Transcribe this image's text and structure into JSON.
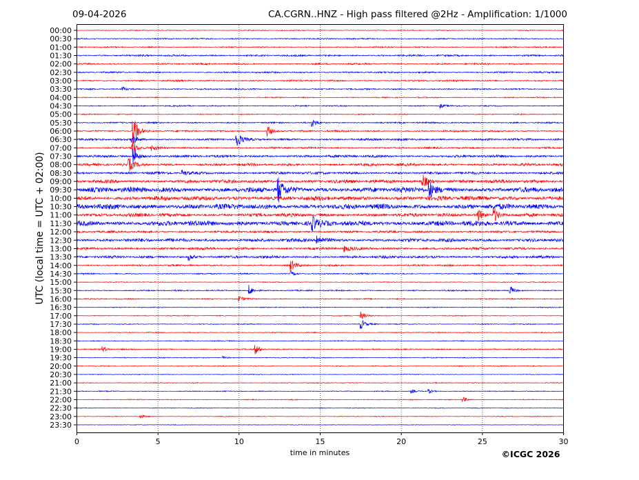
{
  "header": {
    "date": "09-04-2026",
    "title": "CA.CGRN..HNZ - High pass filtered @2Hz - Amplification: 1/1000"
  },
  "footer": {
    "copyright": "©ICGC 2026"
  },
  "chart_data": {
    "type": "line",
    "subtype": "helicorder",
    "title": "CA.CGRN..HNZ - High pass filtered @2Hz - Amplification: 1/1000",
    "xlabel": "time in minutes",
    "ylabel": "UTC (local time = UTC + 02:00)",
    "xlim": [
      0,
      30
    ],
    "xticks": [
      0,
      5,
      10,
      15,
      20,
      25,
      30
    ],
    "grid": "vertical dotted at x ticks",
    "colors": {
      "even_row": "#ff0000",
      "odd_row": "#0000ff"
    },
    "rows": [
      "00:00",
      "00:30",
      "01:00",
      "01:30",
      "02:00",
      "02:30",
      "03:00",
      "03:30",
      "04:00",
      "04:30",
      "05:00",
      "05:30",
      "06:00",
      "06:30",
      "07:00",
      "07:30",
      "08:00",
      "08:30",
      "09:00",
      "09:30",
      "10:00",
      "10:30",
      "11:00",
      "11:30",
      "12:00",
      "12:30",
      "13:00",
      "13:30",
      "14:00",
      "14:30",
      "15:00",
      "15:30",
      "16:00",
      "16:30",
      "17:00",
      "17:30",
      "18:00",
      "18:30",
      "19:00",
      "19:30",
      "20:00",
      "20:30",
      "21:00",
      "21:30",
      "22:00",
      "22:30",
      "23:00",
      "23:30"
    ],
    "noise_level": [
      0.5,
      0.7,
      0.7,
      1,
      0.9,
      0.9,
      0.9,
      0.8,
      0.6,
      0.7,
      0.6,
      0.8,
      1,
      1.2,
      1,
      1.5,
      1.5,
      1.5,
      2,
      3,
      2.5,
      3,
      2,
      3,
      1.2,
      2,
      1.5,
      1.5,
      1,
      0.7,
      0.5,
      0.7,
      0.7,
      0.5,
      0.5,
      0.5,
      0.5,
      0.5,
      0.7,
      0.5,
      0.5,
      0.4,
      0.5,
      0.5,
      0.5,
      0.4,
      0.4,
      0.3
    ],
    "events": [
      {
        "row": 12,
        "minute": 3.45,
        "amplitude": 25
      },
      {
        "row": 13,
        "minute": 3.4,
        "amplitude": 8
      },
      {
        "row": 14,
        "minute": 3.4,
        "amplitude": 12
      },
      {
        "row": 15,
        "minute": 3.45,
        "amplitude": 15
      },
      {
        "row": 16,
        "minute": 3.2,
        "amplitude": 10
      },
      {
        "row": 12,
        "minute": 11.7,
        "amplitude": 10
      },
      {
        "row": 13,
        "minute": 9.8,
        "amplitude": 15
      },
      {
        "row": 11,
        "minute": 14.5,
        "amplitude": 6
      },
      {
        "row": 14,
        "minute": 4.6,
        "amplitude": 4
      },
      {
        "row": 19,
        "minute": 12.4,
        "amplitude": 20
      },
      {
        "row": 18,
        "minute": 21.3,
        "amplitude": 12
      },
      {
        "row": 19,
        "minute": 21.7,
        "amplitude": 15
      },
      {
        "row": 22,
        "minute": 24.7,
        "amplitude": 10
      },
      {
        "row": 22,
        "minute": 25.7,
        "amplitude": 12
      },
      {
        "row": 31,
        "minute": 10.6,
        "amplitude": 8
      },
      {
        "row": 31,
        "minute": 26.7,
        "amplitude": 7
      },
      {
        "row": 26,
        "minute": 16.5,
        "amplitude": 5
      },
      {
        "row": 27,
        "minute": 6.9,
        "amplitude": 5
      },
      {
        "row": 28,
        "minute": 13.2,
        "amplitude": 8
      },
      {
        "row": 38,
        "minute": 11.0,
        "amplitude": 7
      },
      {
        "row": 44,
        "minute": 23.8,
        "amplitude": 4
      },
      {
        "row": 34,
        "minute": 17.5,
        "amplitude": 6
      },
      {
        "row": 35,
        "minute": 17.5,
        "amplitude": 8
      },
      {
        "row": 7,
        "minute": 2.8,
        "amplitude": 3
      },
      {
        "row": 9,
        "minute": 22.4,
        "amplitude": 3
      },
      {
        "row": 17,
        "minute": 6.5,
        "amplitude": 4
      },
      {
        "row": 23,
        "minute": 14.5,
        "amplitude": 10
      },
      {
        "row": 25,
        "minute": 14.8,
        "amplitude": 8
      },
      {
        "row": 29,
        "minute": 13.2,
        "amplitude": 4
      },
      {
        "row": 32,
        "minute": 10.0,
        "amplitude": 4
      },
      {
        "row": 43,
        "minute": 20.6,
        "amplitude": 3
      },
      {
        "row": 43,
        "minute": 21.7,
        "amplitude": 3
      },
      {
        "row": 38,
        "minute": 1.6,
        "amplitude": 4
      },
      {
        "row": 46,
        "minute": 3.9,
        "amplitude": 3
      },
      {
        "row": 39,
        "minute": 9.0,
        "amplitude": 2
      }
    ]
  }
}
